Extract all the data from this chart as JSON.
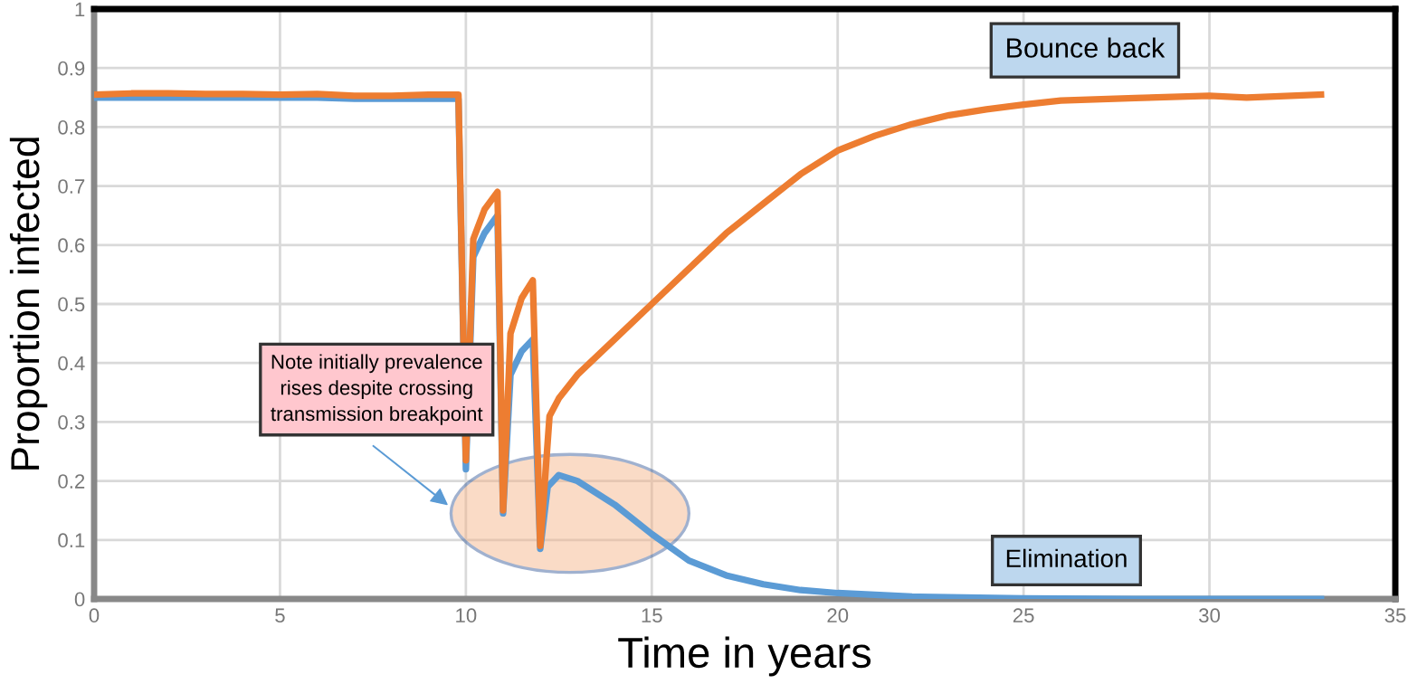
{
  "chart_data": {
    "type": "line",
    "xlabel": "Time in years",
    "ylabel": "Proportion infected",
    "xlim": [
      0,
      35
    ],
    "ylim": [
      0,
      1
    ],
    "xticks": [
      0,
      5,
      10,
      15,
      20,
      25,
      30,
      35
    ],
    "yticks": [
      0,
      0.1,
      0.2,
      0.3,
      0.4,
      0.5,
      0.6,
      0.7,
      0.8,
      0.9,
      1
    ],
    "grid": true,
    "legend": false,
    "marker": "none",
    "line_style": "solid",
    "series": [
      {
        "color": "#5b9bd5",
        "x": [
          0,
          1,
          2,
          3,
          4,
          5,
          6,
          7,
          8,
          9,
          9.8,
          10,
          10.2,
          10.5,
          10.85,
          11,
          11.2,
          11.5,
          11.8,
          12,
          12.2,
          12.5,
          13,
          14,
          15,
          16,
          17,
          18,
          19,
          20,
          22,
          25,
          28,
          33
        ],
        "values": [
          0.85,
          0.85,
          0.85,
          0.85,
          0.85,
          0.85,
          0.85,
          0.848,
          0.848,
          0.848,
          0.848,
          0.22,
          0.58,
          0.62,
          0.65,
          0.145,
          0.38,
          0.42,
          0.44,
          0.085,
          0.19,
          0.21,
          0.2,
          0.16,
          0.11,
          0.065,
          0.04,
          0.025,
          0.015,
          0.01,
          0.004,
          0.001,
          0,
          0
        ]
      },
      {
        "color": "#ed7d31",
        "x": [
          0,
          1,
          2,
          3,
          4,
          5,
          6,
          7,
          8,
          9,
          9.8,
          10,
          10.2,
          10.5,
          10.85,
          11,
          11.2,
          11.5,
          11.8,
          12,
          12.25,
          12.5,
          13,
          14,
          15,
          16,
          17,
          18,
          19,
          20,
          21,
          22,
          23,
          24,
          25,
          26,
          28,
          30,
          31,
          33
        ],
        "values": [
          0.855,
          0.857,
          0.857,
          0.856,
          0.856,
          0.855,
          0.856,
          0.853,
          0.853,
          0.855,
          0.855,
          0.235,
          0.61,
          0.66,
          0.69,
          0.15,
          0.45,
          0.51,
          0.54,
          0.09,
          0.31,
          0.34,
          0.38,
          0.44,
          0.5,
          0.56,
          0.62,
          0.67,
          0.72,
          0.76,
          0.785,
          0.805,
          0.82,
          0.83,
          0.838,
          0.845,
          0.849,
          0.853,
          0.85,
          0.855
        ]
      }
    ],
    "annotations": [
      "Bounce back",
      "Elimination",
      "Note initially prevalence\nrises despite crossing\ntransmission breakpoint"
    ]
  }
}
